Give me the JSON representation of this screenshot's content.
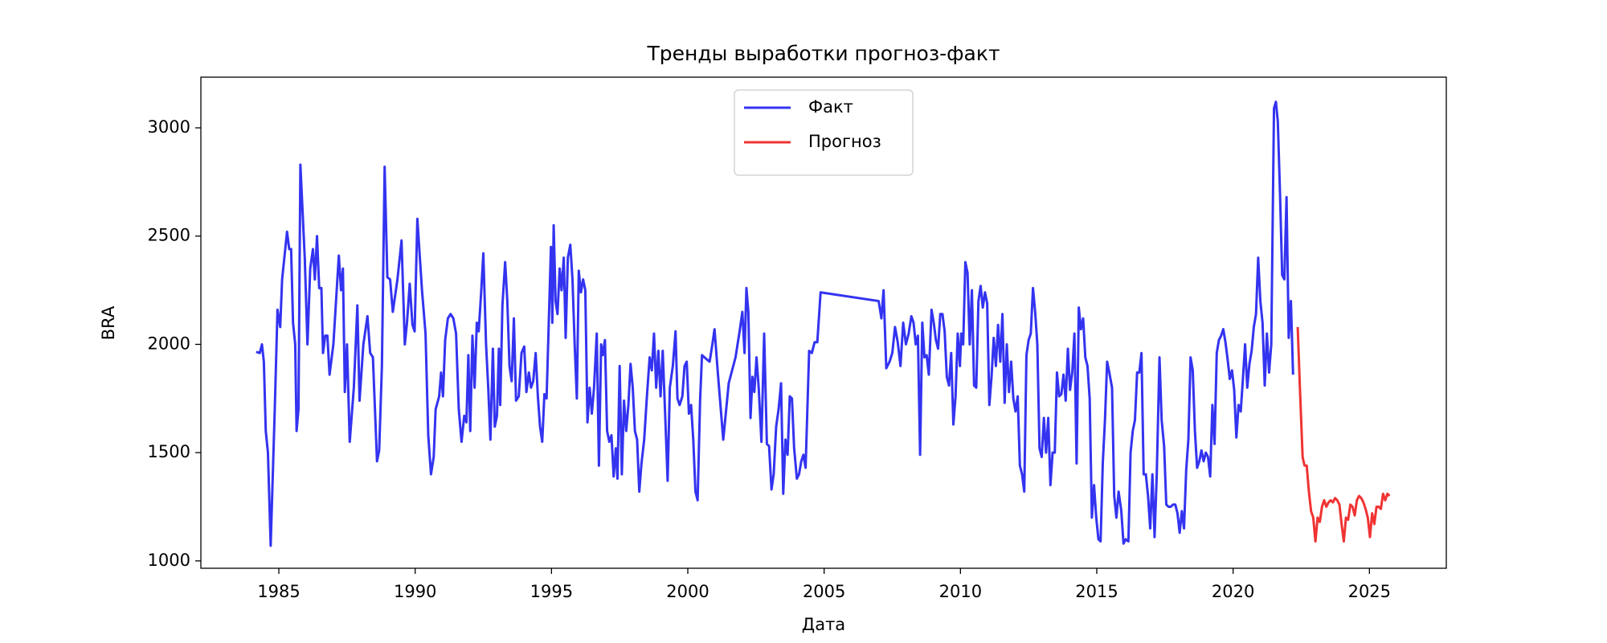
{
  "chart_data": {
    "type": "line",
    "title": "Тренды выработки прогноз-факт",
    "xlabel": "Дата",
    "ylabel": "BRA",
    "legend": "upper center",
    "grid": false,
    "xlim": [
      1982.14,
      2027.82
    ],
    "xticks": [
      1985,
      1990,
      1995,
      2000,
      2005,
      2010,
      2015,
      2020,
      2025
    ],
    "ylim": [
      966,
      3234
    ],
    "yticks": [
      1000,
      1500,
      2000,
      2500,
      3000
    ],
    "series": [
      {
        "name": "Факт",
        "color": "#3333f0",
        "x": [
          1984.17,
          1984.3,
          1984.38,
          1984.45,
          1984.52,
          1984.6,
          1984.7,
          1984.85,
          1984.95,
          1985.05,
          1985.12,
          1985.3,
          1985.38,
          1985.45,
          1985.52,
          1985.6,
          1985.65,
          1985.72,
          1985.79,
          1985.95,
          1986.05,
          1986.15,
          1986.25,
          1986.32,
          1986.4,
          1986.48,
          1986.56,
          1986.62,
          1986.7,
          1986.78,
          1986.86,
          1987.0,
          1987.2,
          1987.28,
          1987.35,
          1987.42,
          1987.5,
          1987.6,
          1987.75,
          1987.88,
          1987.96,
          1988.1,
          1988.25,
          1988.35,
          1988.45,
          1988.6,
          1988.68,
          1988.78,
          1988.88,
          1988.98,
          1989.08,
          1989.18,
          1989.35,
          1989.5,
          1989.62,
          1989.7,
          1989.8,
          1989.9,
          1989.98,
          1990.08,
          1990.25,
          1990.38,
          1990.48,
          1990.58,
          1990.68,
          1990.75,
          1990.88,
          1990.95,
          1991.02,
          1991.1,
          1991.2,
          1991.3,
          1991.4,
          1991.5,
          1991.6,
          1991.7,
          1991.8,
          1991.88,
          1991.95,
          1992.02,
          1992.1,
          1992.18,
          1992.26,
          1992.33,
          1992.42,
          1992.5,
          1992.6,
          1992.68,
          1992.76,
          1992.85,
          1992.92,
          1993.0,
          1993.07,
          1993.12,
          1993.2,
          1993.3,
          1993.38,
          1993.46,
          1993.54,
          1993.62,
          1993.7,
          1993.8,
          1993.9,
          1994.0,
          1994.08,
          1994.17,
          1994.25,
          1994.33,
          1994.42,
          1994.5,
          1994.58,
          1994.66,
          1994.74,
          1994.82,
          1994.9,
          1994.98,
          1995.03,
          1995.08,
          1995.15,
          1995.22,
          1995.3,
          1995.37,
          1995.45,
          1995.52,
          1995.6,
          1995.69,
          1995.77,
          1995.85,
          1995.93,
          1996.0,
          1996.08,
          1996.16,
          1996.24,
          1996.32,
          1996.4,
          1996.48,
          1996.56,
          1996.66,
          1996.74,
          1996.82,
          1996.88,
          1996.96,
          1997.04,
          1997.12,
          1997.2,
          1997.28,
          1997.36,
          1997.42,
          1997.5,
          1997.58,
          1997.66,
          1997.74,
          1997.82,
          1997.9,
          1997.98,
          1998.06,
          1998.14,
          1998.22,
          1998.3,
          1998.4,
          1998.5,
          1998.6,
          1998.68,
          1998.76,
          1998.84,
          1998.92,
          1999.0,
          1999.08,
          1999.18,
          1999.26,
          1999.34,
          1999.45,
          1999.55,
          1999.62,
          1999.7,
          1999.8,
          1999.88,
          1999.96,
          2000.04,
          2000.12,
          2000.2,
          2000.28,
          2000.36,
          2000.45,
          2000.52,
          2000.7,
          2000.8,
          2000.9,
          2000.98,
          2001.1,
          2001.3,
          2001.5,
          2001.75,
          2001.9,
          2002.0,
          2002.08,
          2002.15,
          2002.22,
          2002.3,
          2002.37,
          2002.44,
          2002.52,
          2002.6,
          2002.7,
          2002.8,
          2002.9,
          2002.98,
          2003.07,
          2003.15,
          2003.24,
          2003.33,
          2003.42,
          2003.5,
          2003.58,
          2003.66,
          2003.74,
          2003.82,
          2003.9,
          2004.0,
          2004.08,
          2004.16,
          2004.24,
          2004.32,
          2004.45,
          2004.55,
          2004.65,
          2004.75,
          2004.87,
          2007.0,
          2007.1,
          2007.18,
          2007.28,
          2007.4,
          2007.5,
          2007.6,
          2007.7,
          2007.8,
          2007.9,
          2008.0,
          2008.1,
          2008.2,
          2008.28,
          2008.36,
          2008.44,
          2008.52,
          2008.6,
          2008.68,
          2008.76,
          2008.84,
          2008.94,
          2009.02,
          2009.1,
          2009.18,
          2009.26,
          2009.34,
          2009.42,
          2009.5,
          2009.58,
          2009.66,
          2009.74,
          2009.82,
          2009.9,
          2009.98,
          2010.03,
          2010.1,
          2010.18,
          2010.26,
          2010.34,
          2010.42,
          2010.5,
          2010.58,
          2010.66,
          2010.74,
          2010.82,
          2010.9,
          2010.98,
          2011.06,
          2011.14,
          2011.22,
          2011.3,
          2011.38,
          2011.46,
          2011.54,
          2011.62,
          2011.7,
          2011.78,
          2011.86,
          2011.94,
          2012.02,
          2012.1,
          2012.18,
          2012.26,
          2012.34,
          2012.42,
          2012.5,
          2012.58,
          2012.66,
          2012.74,
          2012.82,
          2012.9,
          2012.98,
          2013.06,
          2013.14,
          2013.22,
          2013.3,
          2013.38,
          2013.46,
          2013.54,
          2013.62,
          2013.7,
          2013.78,
          2013.86,
          2013.94,
          2014.02,
          2014.1,
          2014.18,
          2014.26,
          2014.34,
          2014.42,
          2014.5,
          2014.58,
          2014.66,
          2014.74,
          2014.82,
          2014.9,
          2014.98,
          2015.06,
          2015.14,
          2015.22,
          2015.3,
          2015.38,
          2015.46,
          2015.56,
          2015.64,
          2015.72,
          2015.8,
          2015.9,
          2015.98,
          2016.06,
          2016.16,
          2016.24,
          2016.32,
          2016.4,
          2016.48,
          2016.56,
          2016.64,
          2016.72,
          2016.8,
          2016.88,
          2016.96,
          2017.04,
          2017.12,
          2017.2,
          2017.3,
          2017.38,
          2017.47,
          2017.55,
          2017.63,
          2017.71,
          2017.8,
          2017.88,
          2017.96,
          2018.04,
          2018.12,
          2018.2,
          2018.28,
          2018.36,
          2018.44,
          2018.52,
          2018.6,
          2018.68,
          2018.76,
          2018.84,
          2018.92,
          2019.0,
          2019.08,
          2019.16,
          2019.24,
          2019.32,
          2019.4,
          2019.48,
          2019.56,
          2019.64,
          2019.72,
          2019.8,
          2019.88,
          2019.96,
          2020.04,
          2020.12,
          2020.2,
          2020.28,
          2020.36,
          2020.44,
          2020.52,
          2020.6,
          2020.68,
          2020.76,
          2020.84,
          2020.92,
          2021.0,
          2021.08,
          2021.16,
          2021.24,
          2021.32,
          2021.4,
          2021.5,
          2021.57,
          2021.64,
          2021.72,
          2021.8,
          2021.88,
          2021.96,
          2022.04,
          2022.12,
          2022.2
        ],
        "values": [
          1965,
          1960,
          2000,
          1920,
          1600,
          1500,
          1070,
          1700,
          2160,
          2080,
          2300,
          2520,
          2440,
          2440,
          2100,
          2000,
          1600,
          1700,
          2830,
          2400,
          2000,
          2350,
          2440,
          2300,
          2500,
          2260,
          2260,
          1960,
          2040,
          2040,
          1860,
          2000,
          2410,
          2250,
          2350,
          1780,
          2000,
          1550,
          1800,
          2180,
          1740,
          2000,
          2130,
          1960,
          1940,
          1460,
          1510,
          1900,
          2820,
          2310,
          2300,
          2150,
          2300,
          2480,
          2000,
          2100,
          2280,
          2090,
          2060,
          2580,
          2250,
          2050,
          1580,
          1400,
          1480,
          1700,
          1760,
          1870,
          1760,
          2020,
          2120,
          2140,
          2120,
          2050,
          1700,
          1550,
          1670,
          1640,
          1950,
          1600,
          2040,
          1800,
          2100,
          2060,
          2240,
          2420,
          2000,
          1800,
          1560,
          1980,
          1620,
          1670,
          1980,
          1720,
          2180,
          2380,
          2200,
          1900,
          1830,
          2120,
          1740,
          1760,
          1960,
          1990,
          1780,
          1870,
          1800,
          1830,
          1960,
          1760,
          1620,
          1550,
          1770,
          1750,
          2100,
          2450,
          2100,
          2550,
          2200,
          2140,
          2350,
          2250,
          2400,
          2030,
          2400,
          2460,
          2300,
          2000,
          1750,
          2340,
          2240,
          2300,
          2250,
          1640,
          1800,
          1680,
          1800,
          2050,
          1440,
          2000,
          1950,
          2020,
          1600,
          1550,
          1580,
          1390,
          1520,
          1380,
          1900,
          1400,
          1740,
          1600,
          1720,
          1910,
          1800,
          1600,
          1560,
          1320,
          1450,
          1560,
          1760,
          1940,
          1880,
          2050,
          1800,
          1970,
          1760,
          1970,
          1640,
          1370,
          1800,
          1900,
          2060,
          1750,
          1720,
          1760,
          1900,
          1920,
          1680,
          1720,
          1560,
          1320,
          1280,
          1740,
          1950,
          1930,
          1920,
          2000,
          2070,
          1870,
          1560,
          1820,
          1940,
          2060,
          2150,
          1960,
          2260,
          2150,
          1660,
          1850,
          1780,
          1940,
          1800,
          1550,
          2050,
          1540,
          1530,
          1330,
          1400,
          1620,
          1700,
          1820,
          1310,
          1560,
          1490,
          1760,
          1750,
          1520,
          1380,
          1400,
          1460,
          1490,
          1430,
          1970,
          1960,
          2010,
          2010,
          2240,
          2200,
          2120,
          2250,
          1890,
          1920,
          1960,
          2080,
          2010,
          1900,
          2100,
          2000,
          2050,
          2130,
          2100,
          2000,
          2040,
          1490,
          2100,
          1940,
          1950,
          1860,
          2160,
          2100,
          2020,
          1980,
          2140,
          2140,
          2060,
          1850,
          1810,
          1960,
          1630,
          1760,
          2050,
          1900,
          2050,
          2000,
          2380,
          2330,
          2000,
          2250,
          1810,
          1800,
          2200,
          2270,
          2170,
          2240,
          2190,
          1720,
          1850,
          2030,
          1900,
          2090,
          1920,
          2140,
          1730,
          2000,
          1780,
          1920,
          1750,
          1690,
          1760,
          1440,
          1400,
          1320,
          1950,
          2020,
          2050,
          2260,
          2150,
          2000,
          1520,
          1480,
          1660,
          1500,
          1660,
          1350,
          1500,
          1500,
          1870,
          1760,
          1770,
          1860,
          1740,
          1980,
          1790,
          1870,
          2050,
          1450,
          2170,
          2070,
          2120,
          1940,
          1900,
          1750,
          1200,
          1350,
          1200,
          1100,
          1090,
          1450,
          1650,
          1920,
          1870,
          1800,
          1300,
          1200,
          1320,
          1230,
          1080,
          1100,
          1090,
          1500,
          1600,
          1650,
          1870,
          1870,
          1960,
          1400,
          1400,
          1300,
          1150,
          1400,
          1110,
          1400,
          1940,
          1650,
          1530,
          1260,
          1250,
          1250,
          1260,
          1260,
          1220,
          1130,
          1230,
          1150,
          1420,
          1560,
          1940,
          1880,
          1600,
          1430,
          1460,
          1510,
          1460,
          1500,
          1480,
          1390,
          1720,
          1540,
          1960,
          2020,
          2040,
          2070,
          2010,
          1930,
          1840,
          1880,
          1790,
          1570,
          1720,
          1690,
          1840,
          2000,
          1800,
          1910,
          1970,
          2080,
          2140,
          2400,
          2200,
          2100,
          1810,
          2050,
          1870,
          2000,
          3090,
          3120,
          3030,
          2700,
          2320,
          2300,
          2680,
          2030,
          2200,
          1860
        ]
      },
      {
        "name": "Прогноз",
        "color": "#f03333",
        "x": [
          2022.37,
          2022.45,
          2022.55,
          2022.62,
          2022.7,
          2022.78,
          2022.86,
          2022.94,
          2023.02,
          2023.1,
          2023.18,
          2023.26,
          2023.34,
          2023.42,
          2023.5,
          2023.58,
          2023.66,
          2023.74,
          2023.82,
          2023.9,
          2023.98,
          2024.06,
          2024.14,
          2024.22,
          2024.3,
          2024.38,
          2024.46,
          2024.54,
          2024.62,
          2024.7,
          2024.78,
          2024.86,
          2024.94,
          2025.02,
          2025.1,
          2025.18,
          2025.26,
          2025.34,
          2025.42,
          2025.5,
          2025.58,
          2025.66,
          2025.74
        ],
        "values": [
          2080,
          1800,
          1480,
          1440,
          1440,
          1320,
          1230,
          1200,
          1090,
          1200,
          1180,
          1250,
          1280,
          1250,
          1270,
          1280,
          1270,
          1290,
          1280,
          1260,
          1170,
          1090,
          1200,
          1190,
          1260,
          1250,
          1210,
          1280,
          1300,
          1290,
          1270,
          1240,
          1200,
          1110,
          1220,
          1170,
          1250,
          1250,
          1240,
          1310,
          1280,
          1310,
          1300
        ]
      }
    ]
  }
}
